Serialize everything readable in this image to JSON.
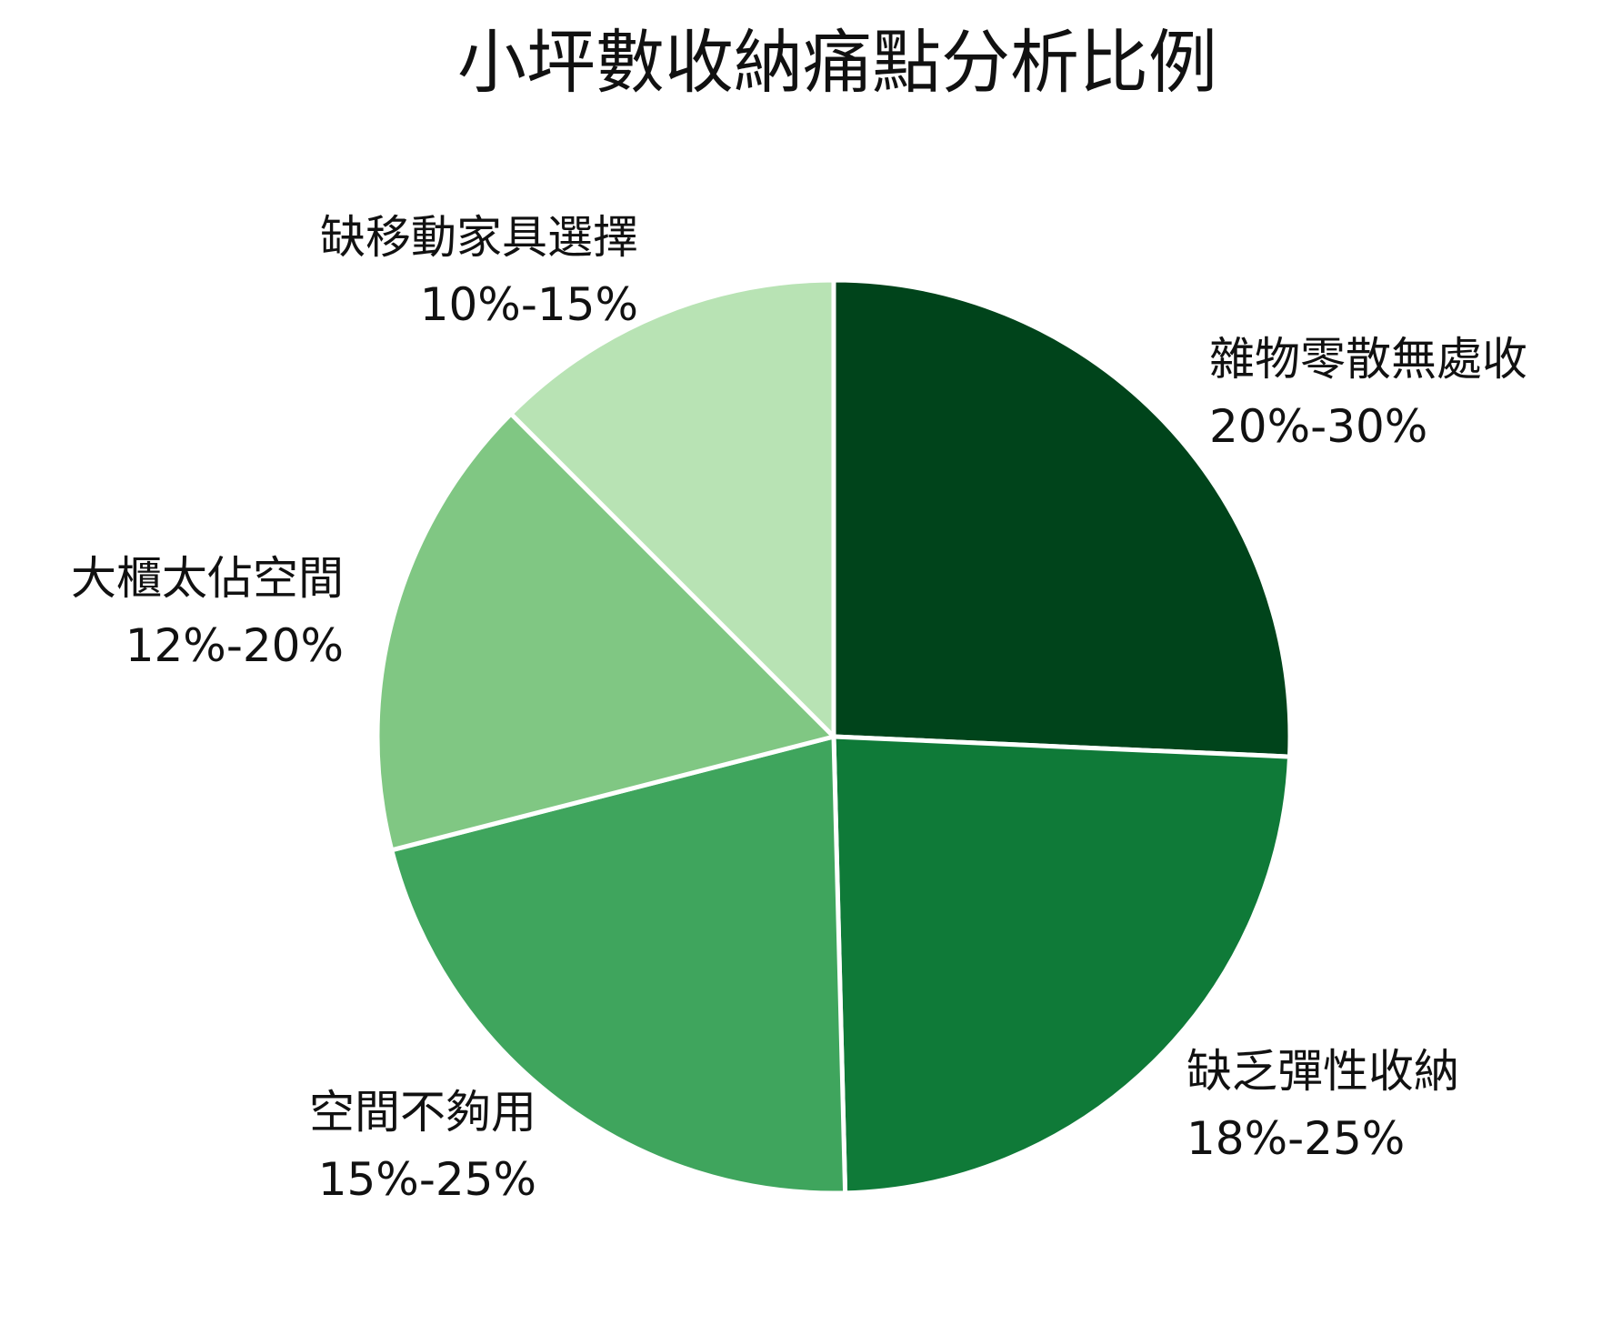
{
  "chart_data": {
    "type": "pie",
    "title": "小坪數收納痛點分析比例",
    "start_angle_deg": 0,
    "direction": "clockwise",
    "slices": [
      {
        "label": "雜物零散無處收",
        "range": "20%-30%",
        "value": 25.7,
        "color": "#00441b"
      },
      {
        "label": "缺乏彈性收納",
        "range": "18%-25%",
        "value": 23.9,
        "color": "#0f7a38"
      },
      {
        "label": "空間不夠用",
        "range": "15%-25%",
        "value": 21.4,
        "color": "#3fa55d"
      },
      {
        "label": "大櫃太佔空間",
        "range": "12%-20%",
        "value": 16.5,
        "color": "#80c783"
      },
      {
        "label": "缺移動家具選擇",
        "range": "10%-15%",
        "value": 12.5,
        "color": "#b8e3b4"
      }
    ]
  }
}
